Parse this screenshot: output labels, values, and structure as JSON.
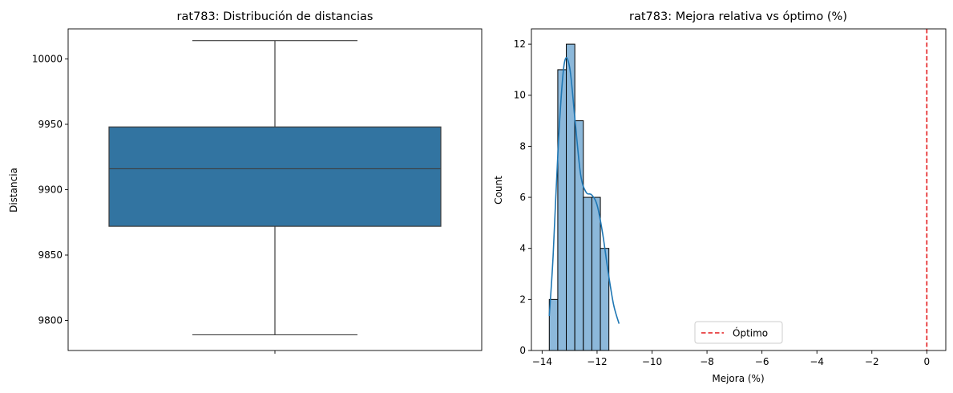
{
  "chart_data": [
    {
      "type": "box",
      "title": "rat783: Distribución de distancias",
      "xlabel": "",
      "ylabel": "Distancia",
      "ylim": [
        9777,
        10023
      ],
      "yticks": [
        9800,
        9850,
        9900,
        9950,
        10000
      ],
      "box": {
        "whisker_low": 9789,
        "q1": 9872,
        "median": 9916,
        "q3": 9948,
        "whisker_high": 10014
      },
      "colors": {
        "box": "#3274a1",
        "line": "#3d3d3d"
      }
    },
    {
      "type": "histogram",
      "title": "rat783: Mejora relativa vs óptimo (%)",
      "xlabel": "Mejora (%)",
      "ylabel": "Count",
      "xlim": [
        -14.39,
        0.69
      ],
      "ylim": [
        0,
        12.6
      ],
      "xticks": [
        -14,
        -12,
        -10,
        -8,
        -6,
        -4,
        -2,
        0
      ],
      "yticks": [
        0,
        2,
        4,
        6,
        8,
        10,
        12
      ],
      "bin_edges": [
        -13.74,
        -13.43,
        -13.12,
        -12.81,
        -12.5,
        -12.19,
        -11.88,
        -11.57,
        -11.26,
        -10.95
      ],
      "counts": [
        2,
        11,
        12,
        9,
        6,
        6,
        4,
        0,
        0
      ],
      "bins_display": [
        {
          "left": -13.74,
          "right": -13.43,
          "count": 2
        },
        {
          "left": -13.43,
          "right": -13.12,
          "count": 11
        },
        {
          "left": -13.12,
          "right": -12.81,
          "count": 12
        },
        {
          "left": -12.81,
          "right": -12.5,
          "count": 9
        },
        {
          "left": -12.5,
          "right": -12.19,
          "count": 6
        },
        {
          "left": -12.19,
          "right": -11.88,
          "count": 6
        },
        {
          "left": -11.88,
          "right": -11.57,
          "count": 4
        }
      ],
      "kde": {
        "x": [
          -13.74,
          -13.6,
          -13.4,
          -13.2,
          -13.0,
          -12.8,
          -12.6,
          -12.4,
          -12.2,
          -12.0,
          -11.8,
          -11.6,
          -11.4,
          -11.2
        ],
        "y": [
          1.35,
          3.7,
          8.3,
          11.2,
          11.1,
          9.0,
          6.9,
          6.2,
          6.1,
          5.7,
          4.6,
          3.1,
          1.8,
          1.05
        ]
      },
      "reference_line": {
        "x": 0,
        "label": "Óptimo",
        "color": "#e41a1c"
      },
      "legend_placement": "lower center",
      "colors": {
        "bar": "#8cb8da",
        "edge": "#000000",
        "kde": "#1f77b4"
      }
    }
  ]
}
